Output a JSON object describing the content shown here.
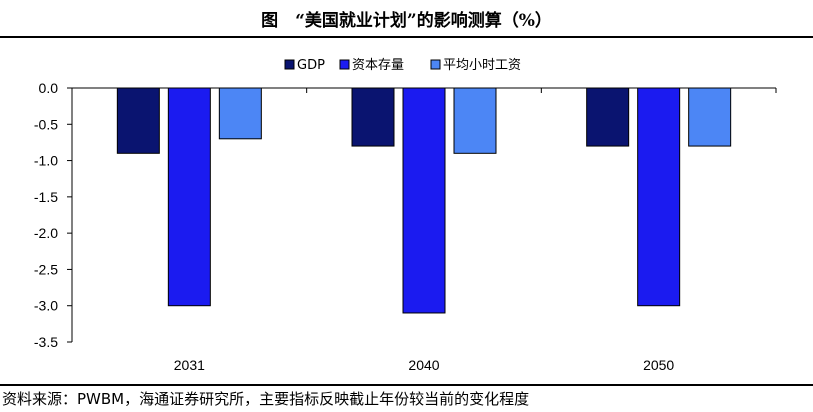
{
  "title": "图　“美国就业计划”的影响测算（%）",
  "source": "资料来源：PWBM，海通证券研究所，主要指标反映截止年份较当前的变化程度",
  "colors": {
    "gdp": "#0a1470",
    "capital": "#1b1bf0",
    "wage": "#4c86f5"
  },
  "chart_data": {
    "type": "bar",
    "categories": [
      "2031",
      "2040",
      "2050"
    ],
    "series": [
      {
        "name": "GDP",
        "values": [
          -0.9,
          -0.8,
          -0.8
        ]
      },
      {
        "name": "资本存量",
        "values": [
          -3.0,
          -3.1,
          -3.0
        ]
      },
      {
        "name": "平均小时工资",
        "values": [
          -0.7,
          -0.9,
          -0.8
        ]
      }
    ],
    "yticks": [
      "0.0",
      "-0.5",
      "-1.0",
      "-1.5",
      "-2.0",
      "-2.5",
      "-3.0",
      "-3.5"
    ],
    "ylim": [
      -3.5,
      0
    ],
    "legend_position": "top-center"
  }
}
